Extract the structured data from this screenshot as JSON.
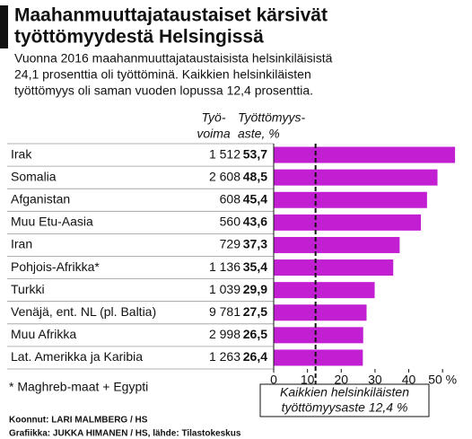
{
  "chart_data": {
    "type": "bar",
    "orientation": "horizontal",
    "title": [
      "Maahanmuuttajataustaiset kärsivät",
      "työttömyydestä Helsingissä"
    ],
    "subtitle": [
      "Vuonna 2016 maahanmuuttajataustaisista helsinkiläisistä",
      "24,1 prosenttia oli työttöminä. Kaikkien helsinkiläisten",
      "työttömyys oli saman vuoden lopussa 12,4 prosenttia."
    ],
    "workforce_header": [
      "Työ-",
      "voima"
    ],
    "value_header": [
      "Työttömyys-",
      "aste, %"
    ],
    "categories": [
      "Irak",
      "Somalia",
      "Afganistan",
      "Muu Etu-Aasia",
      "Iran",
      "Pohjois-Afrikka*",
      "Turkki",
      "Venäjä, ent. NL (pl. Baltia)",
      "Muu Afrikka",
      "Lat. Amerikka ja Karibia"
    ],
    "workforce": [
      "1 512",
      "2 608",
      "608",
      "560",
      "729",
      "1 136",
      "1 039",
      "9 781",
      "2 998",
      "1 263"
    ],
    "values": [
      53.7,
      48.5,
      45.4,
      43.6,
      37.3,
      35.4,
      29.9,
      27.5,
      26.5,
      26.4
    ],
    "value_labels": [
      "53,7",
      "48,5",
      "45,4",
      "43,6",
      "37,3",
      "35,4",
      "29,9",
      "27,5",
      "26,5",
      "26,4"
    ],
    "color": "#c21fd3",
    "xlim": [
      0,
      55
    ],
    "xticks": [
      0,
      10,
      20,
      30,
      40,
      {
        "value": 50,
        "label": "50 %"
      }
    ],
    "reference": {
      "value": 12.4,
      "label": [
        "Kaikkien helsinkiläisten",
        "työttömyysaste 12,4 %"
      ]
    },
    "footnote": "* Maghreb-maat + Egypti",
    "credits": [
      "Koonnut: LARI MALMBERG / HS",
      "Grafiikka: JUKKA HIMANEN / HS, lähde: Tilastokeskus"
    ]
  }
}
